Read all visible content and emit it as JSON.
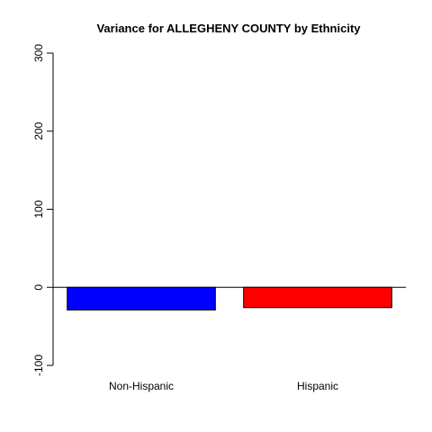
{
  "chart_data": {
    "type": "bar",
    "title": "Variance for ALLEGHENY COUNTY by Ethnicity",
    "xlabel": "",
    "ylabel": "",
    "categories": [
      "Non-Hispanic",
      "Hispanic"
    ],
    "values": [
      -29,
      -26
    ],
    "colors": [
      "#0000ff",
      "#ff0000"
    ],
    "ylim": [
      -100,
      300
    ],
    "yticks": [
      "-100",
      "0",
      "100",
      "200",
      "300"
    ],
    "baseline": 0,
    "grid": false,
    "legend": "none"
  }
}
